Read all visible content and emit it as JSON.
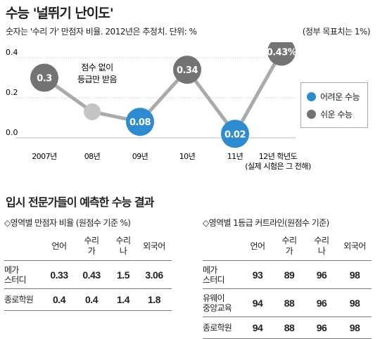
{
  "title": "수능 '널뛰기 난이도'",
  "subtitle": "숫자는 '수리 가' 만점자 비율. 2012년은 추정치. 단위: %",
  "note": "(정부 목표치는 1%)",
  "chart_data": {
    "type": "line",
    "x": [
      "2007년",
      "08년",
      "09년",
      "10년",
      "11년",
      "12년 학년도"
    ],
    "x_sublabel": "(실제 시험은 그 전해)",
    "values": [
      0.3,
      0.13,
      0.08,
      0.34,
      0.02,
      0.43
    ],
    "value_labels": [
      "0.3",
      "",
      "0.08",
      "0.34",
      "0.02",
      "0.43%"
    ],
    "difficulty": [
      "easy",
      "none",
      "hard",
      "easy",
      "hard",
      "easy"
    ],
    "annotation": "점수 없이\n등급만 받음",
    "ylim": [
      0,
      0.4
    ],
    "yticks": [
      "0.0",
      "0.2",
      "0.4"
    ],
    "legend": [
      "어려운 수능",
      "쉬운 수능"
    ],
    "legend_placement": "right",
    "colors": {
      "hard": "#2e8bcf",
      "easy": "#737373",
      "none": "#c4c4c4",
      "line": "#aaaaaa"
    }
  },
  "section2_title": "입시 전문가들이 예측한 수능 결과",
  "table1": {
    "caption": "◇영역별 만점자 비율 (원점수 기준 %)",
    "headers": [
      "언어",
      "수리\n가",
      "수리\n나",
      "외국어"
    ],
    "rows": [
      {
        "label": "메가\n스터디",
        "values": [
          "0.33",
          "0.43",
          "1.5",
          "3.06"
        ]
      },
      {
        "label": "종로학원",
        "values": [
          "0.4",
          "0.4",
          "1.4",
          "1.8"
        ]
      }
    ]
  },
  "table2": {
    "caption": "◇영역별 1등급 커트라인(원점수 기준)",
    "headers": [
      "언어",
      "수리\n가",
      "수리\n나",
      "외국어"
    ],
    "rows": [
      {
        "label": "메가\n스터디",
        "values": [
          "93",
          "89",
          "96",
          "98"
        ]
      },
      {
        "label": "유웨이\n중앙교육",
        "values": [
          "94",
          "88",
          "96",
          "98"
        ]
      },
      {
        "label": "종로학원",
        "values": [
          "94",
          "88",
          "96",
          "98"
        ]
      }
    ]
  }
}
